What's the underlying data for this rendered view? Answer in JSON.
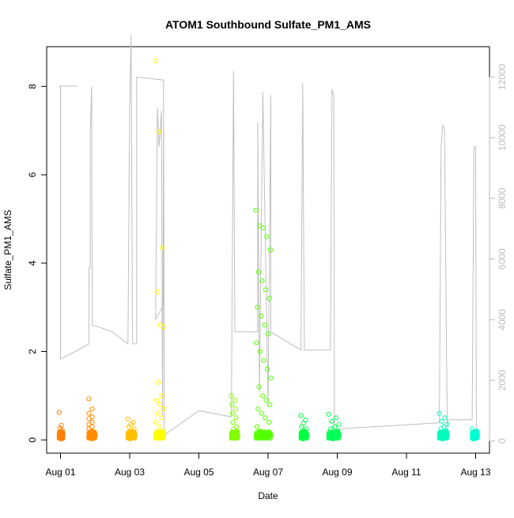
{
  "chart_data": {
    "type": "scatter",
    "title": "ATOM1 Southbound Sulfate_PM1_AMS",
    "xlabel": "Date",
    "ylabel": "Sulfate_PM1_AMS",
    "x_ticks": [
      "Aug 01",
      "Aug 03",
      "Aug 05",
      "Aug 07",
      "Aug 09",
      "Aug 11",
      "Aug 13"
    ],
    "x_tick_days": [
      1,
      3,
      5,
      7,
      9,
      11,
      13
    ],
    "xlim_days": [
      0.6,
      13.4
    ],
    "ylim": [
      -0.3,
      8.9
    ],
    "y_ticks": [
      0,
      2,
      4,
      6,
      8
    ],
    "y2lim": [
      -400,
      13000
    ],
    "y2_ticks": [
      0,
      2000,
      4000,
      6000,
      8000,
      10000,
      12000
    ],
    "grid": false,
    "marker": "open-circle",
    "sulfate_clusters": [
      {
        "day_start": 0.96,
        "day_end": 1.07,
        "values": [
          0.62,
          0.33,
          0.27,
          0.22,
          0.18,
          0.15,
          0.12,
          0.1,
          0.08,
          0.05,
          0.03,
          0.02
        ],
        "color": "#ff8000"
      },
      {
        "day_start": 1.82,
        "day_end": 2.0,
        "values": [
          0.93,
          0.7,
          0.6,
          0.52,
          0.48,
          0.4,
          0.35,
          0.3,
          0.25,
          0.2,
          0.15,
          0.1,
          0.05,
          0.02
        ],
        "color": "#ff8c00"
      },
      {
        "day_start": 2.95,
        "day_end": 3.15,
        "values": [
          0.47,
          0.4,
          0.35,
          0.3,
          0.25,
          0.2,
          0.15,
          0.1,
          0.05,
          0.02
        ],
        "color": "#ffbf00"
      },
      {
        "day_start": 3.75,
        "day_end": 3.98,
        "values": [
          8.58,
          6.98,
          4.35,
          3.35,
          2.6,
          2.55,
          1.3,
          1.0,
          0.9,
          0.8,
          0.7,
          0.6,
          0.5,
          0.4,
          0.3,
          0.2,
          0.1,
          0.05
        ],
        "color": "#ffff00"
      },
      {
        "day_start": 5.94,
        "day_end": 6.12,
        "values": [
          1.0,
          0.9,
          0.8,
          0.7,
          0.6,
          0.5,
          0.4,
          0.3,
          0.25,
          0.2,
          0.15,
          0.1,
          0.05
        ],
        "color": "#80ff00"
      },
      {
        "day_start": 6.65,
        "day_end": 7.08,
        "values": [
          5.2,
          4.85,
          4.8,
          4.6,
          4.3,
          3.8,
          3.6,
          3.4,
          3.2,
          3.0,
          2.8,
          2.6,
          2.4,
          2.2,
          2.0,
          1.8,
          1.6,
          1.4,
          1.2,
          1.0,
          0.9,
          0.8,
          0.7,
          0.6,
          0.5,
          0.4,
          0.3,
          0.2,
          0.1,
          0.05
        ],
        "color": "#55ff00"
      },
      {
        "day_start": 7.95,
        "day_end": 8.12,
        "values": [
          0.55,
          0.45,
          0.38,
          0.3,
          0.25,
          0.2,
          0.15,
          0.1,
          0.05,
          0.02
        ],
        "color": "#00ff40"
      },
      {
        "day_start": 8.75,
        "day_end": 9.05,
        "values": [
          0.58,
          0.5,
          0.42,
          0.35,
          0.3,
          0.25,
          0.2,
          0.15,
          0.1,
          0.05,
          0.02
        ],
        "color": "#00ff55"
      },
      {
        "day_start": 11.95,
        "day_end": 12.18,
        "values": [
          0.6,
          0.5,
          0.42,
          0.35,
          0.3,
          0.25,
          0.2,
          0.15,
          0.1,
          0.05,
          0.02
        ],
        "color": "#00ffbf"
      },
      {
        "day_start": 12.9,
        "day_end": 13.05,
        "values": [
          0.25,
          0.2,
          0.18,
          0.15,
          0.12,
          0.1,
          0.08,
          0.05,
          0.02
        ],
        "color": "#00ffd0"
      }
    ],
    "altitude_trace": {
      "color": "#bfbfbf",
      "path": [
        [
          0.96,
          11700
        ],
        [
          1.0,
          11700
        ],
        [
          1.5,
          11700
        ],
        [
          1.5,
          11700
        ],
        [
          1.0,
          11700
        ],
        [
          1.0,
          2700
        ],
        [
          1.5,
          3000
        ],
        [
          1.82,
          3200
        ],
        [
          1.82,
          5700
        ],
        [
          1.86,
          5700
        ],
        [
          1.86,
          10100
        ],
        [
          1.9,
          11700
        ],
        [
          1.9,
          11700
        ],
        [
          1.92,
          3800
        ],
        [
          2.0,
          3800
        ],
        [
          2.5,
          3600
        ],
        [
          2.95,
          3200
        ],
        [
          3.0,
          11100
        ],
        [
          3.04,
          13400
        ],
        [
          3.08,
          3400
        ],
        [
          3.1,
          3200
        ],
        [
          3.2,
          3200
        ],
        [
          3.2,
          12000
        ],
        [
          3.98,
          11900
        ],
        [
          3.98,
          4500
        ],
        [
          3.75,
          4000
        ],
        [
          3.8,
          11000
        ],
        [
          3.85,
          9700
        ],
        [
          3.92,
          10900
        ],
        [
          3.95,
          800
        ],
        [
          3.98,
          11000
        ],
        [
          4.0,
          200
        ],
        [
          5.0,
          1000
        ],
        [
          5.94,
          800
        ],
        [
          6.0,
          12200
        ],
        [
          6.04,
          3600
        ],
        [
          6.12,
          3600
        ],
        [
          6.7,
          3600
        ],
        [
          6.7,
          10500
        ],
        [
          6.75,
          1600
        ],
        [
          6.85,
          11500
        ],
        [
          7.0,
          1100
        ],
        [
          7.08,
          11400
        ],
        [
          7.08,
          3600
        ],
        [
          7.95,
          3000
        ],
        [
          8.0,
          11800
        ],
        [
          8.05,
          3000
        ],
        [
          8.8,
          3000
        ],
        [
          8.85,
          11600
        ],
        [
          8.9,
          11400
        ],
        [
          8.92,
          400
        ],
        [
          9.05,
          400
        ],
        [
          10.5,
          500
        ],
        [
          11.95,
          600
        ],
        [
          12.0,
          9700
        ],
        [
          12.05,
          10400
        ],
        [
          12.1,
          10300
        ],
        [
          12.18,
          400
        ],
        [
          12.2,
          700
        ],
        [
          12.9,
          700
        ],
        [
          12.95,
          9700
        ],
        [
          13.0,
          9700
        ],
        [
          13.02,
          200
        ]
      ]
    }
  }
}
